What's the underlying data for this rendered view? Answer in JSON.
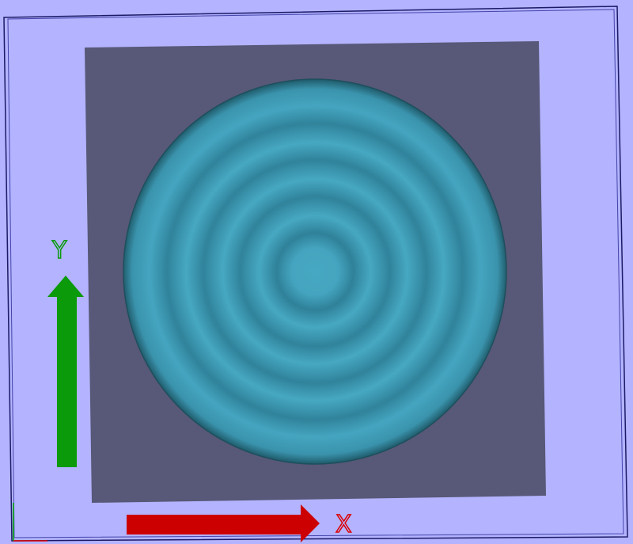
{
  "axes": {
    "x": "X",
    "y": "Y"
  }
}
